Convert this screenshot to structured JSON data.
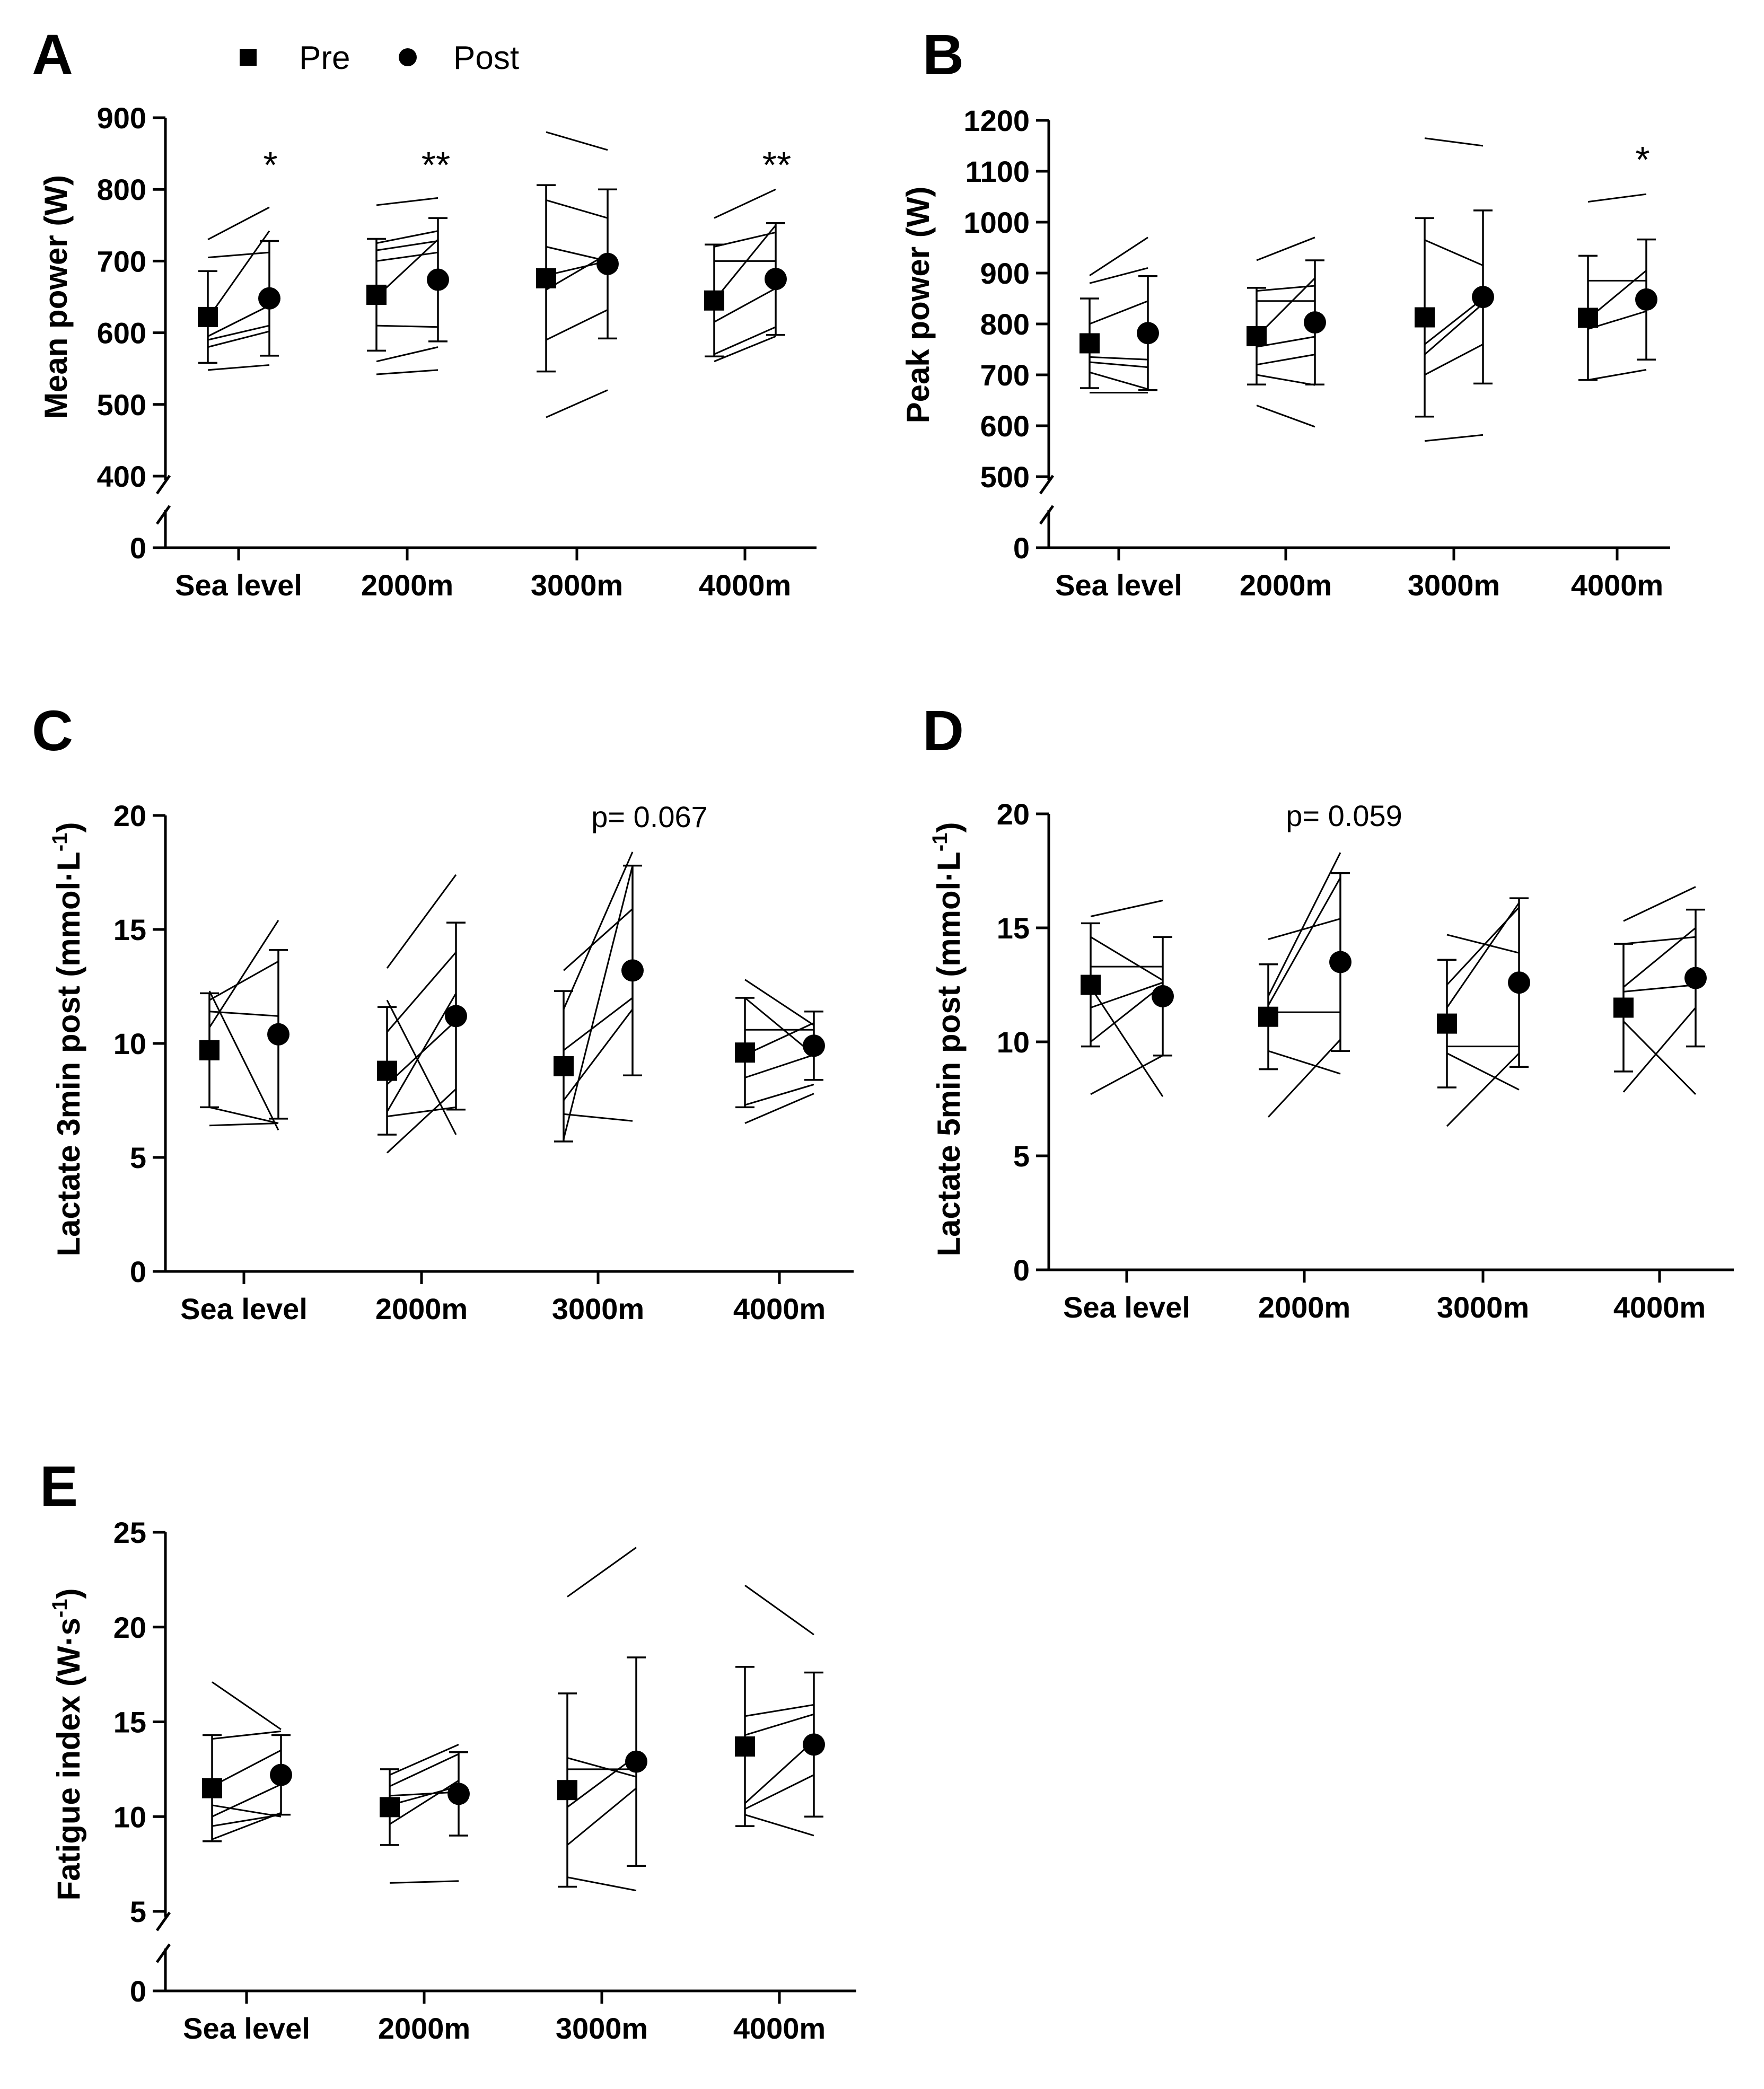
{
  "legend": {
    "pre_label": "Pre",
    "post_label": "Post",
    "pre_marker": "square",
    "post_marker": "circle"
  },
  "colors": {
    "ink": "#000000",
    "background": "#ffffff"
  },
  "chart_data": [
    {
      "id": "A",
      "panel_label": "A",
      "type": "scatter",
      "ylabel": "Mean power (W)",
      "categories": [
        "Sea level",
        "2000m",
        "3000m",
        "4000m"
      ],
      "ylim": [
        400,
        900
      ],
      "ytick_labels": [
        "400",
        "500",
        "600",
        "700",
        "800",
        "900"
      ],
      "axis_break": true,
      "break_zero_label": "0",
      "series": [
        {
          "name": "Pre",
          "values": [
            622,
            653,
            676,
            645
          ],
          "sd": [
            64,
            78,
            130,
            78
          ]
        },
        {
          "name": "Post",
          "values": [
            648,
            674,
            696,
            675
          ],
          "sd": [
            80,
            86,
            104,
            78
          ]
        }
      ],
      "individual_lines": [
        [
          [
            730,
            775
          ],
          [
            705,
            712
          ],
          [
            620,
            742
          ],
          [
            595,
            638
          ],
          [
            590,
            610
          ],
          [
            580,
            602
          ],
          [
            548,
            555
          ]
        ],
        [
          [
            778,
            788
          ],
          [
            725,
            742
          ],
          [
            715,
            728
          ],
          [
            700,
            712
          ],
          [
            650,
            730
          ],
          [
            610,
            608
          ],
          [
            560,
            580
          ],
          [
            542,
            548
          ]
        ],
        [
          [
            880,
            855
          ],
          [
            785,
            760
          ],
          [
            720,
            700
          ],
          [
            680,
            700
          ],
          [
            660,
            710
          ],
          [
            590,
            632
          ],
          [
            482,
            520
          ]
        ],
        [
          [
            760,
            800
          ],
          [
            720,
            740
          ],
          [
            700,
            700
          ],
          [
            645,
            750
          ],
          [
            615,
            662
          ],
          [
            570,
            608
          ],
          [
            560,
            595
          ]
        ]
      ],
      "annotations": [
        "*",
        "**",
        "",
        "**"
      ]
    },
    {
      "id": "B",
      "panel_label": "B",
      "type": "scatter",
      "ylabel": "Peak power (W)",
      "categories": [
        "Sea level",
        "2000m",
        "3000m",
        "4000m"
      ],
      "ylim": [
        500,
        1200
      ],
      "ytick_labels": [
        "500",
        "600",
        "700",
        "800",
        "900",
        "1000",
        "1100",
        "1200"
      ],
      "axis_break": true,
      "break_zero_label": "0",
      "series": [
        {
          "name": "Pre",
          "values": [
            762,
            776,
            813,
            812
          ],
          "sd": [
            88,
            95,
            195,
            122
          ]
        },
        {
          "name": "Post",
          "values": [
            782,
            803,
            853,
            848
          ],
          "sd": [
            112,
            122,
            170,
            118
          ]
        }
      ],
      "individual_lines": [
        [
          [
            895,
            970
          ],
          [
            880,
            910
          ],
          [
            800,
            845
          ],
          [
            735,
            730
          ],
          [
            725,
            715
          ],
          [
            705,
            672
          ],
          [
            665,
            665
          ]
        ],
        [
          [
            925,
            970
          ],
          [
            865,
            875
          ],
          [
            845,
            845
          ],
          [
            775,
            890
          ],
          [
            755,
            775
          ],
          [
            720,
            740
          ],
          [
            700,
            680
          ],
          [
            640,
            598
          ]
        ],
        [
          [
            1165,
            1150
          ],
          [
            965,
            915
          ],
          [
            760,
            850
          ],
          [
            740,
            840
          ],
          [
            700,
            760
          ],
          [
            570,
            582
          ]
        ],
        [
          [
            1040,
            1055
          ],
          [
            885,
            885
          ],
          [
            810,
            905
          ],
          [
            790,
            825
          ],
          [
            690,
            710
          ]
        ]
      ],
      "annotations": [
        "",
        "",
        "",
        "*"
      ]
    },
    {
      "id": "C",
      "panel_label": "C",
      "type": "scatter",
      "ylabel": "Lactate 3min post (mmol·L",
      "ylabel_superscript": "-1",
      "ylabel_suffix": ")",
      "categories": [
        "Sea level",
        "2000m",
        "3000m",
        "4000m"
      ],
      "ylim": [
        0,
        20
      ],
      "ytick_labels": [
        "0",
        "5",
        "10",
        "15",
        "20"
      ],
      "axis_break": false,
      "series": [
        {
          "name": "Pre",
          "values": [
            9.7,
            8.8,
            9.0,
            9.6
          ],
          "sd": [
            2.5,
            2.8,
            3.3,
            2.4
          ]
        },
        {
          "name": "Post",
          "values": [
            10.4,
            11.2,
            13.2,
            9.9
          ],
          "sd": [
            3.7,
            4.1,
            4.6,
            1.5
          ]
        },
        {
          "name": "p-value",
          "values": [
            null,
            null,
            0.067,
            null
          ]
        }
      ],
      "individual_lines": [
        [
          [
            12.3,
            6.2
          ],
          [
            11.9,
            13.6
          ],
          [
            11.4,
            11.2
          ],
          [
            10.7,
            15.4
          ],
          [
            7.2,
            6.5
          ],
          [
            6.4,
            6.5
          ]
        ],
        [
          [
            13.3,
            17.4
          ],
          [
            11.9,
            6.0
          ],
          [
            10.5,
            14.0
          ],
          [
            8.2,
            11.0
          ],
          [
            7.0,
            12.2
          ],
          [
            6.8,
            7.2
          ],
          [
            5.2,
            8.0
          ]
        ],
        [
          [
            13.2,
            15.9
          ],
          [
            11.5,
            18.4
          ],
          [
            9.7,
            12.0
          ],
          [
            7.5,
            11.5
          ],
          [
            6.9,
            6.6
          ],
          [
            5.8,
            17.8
          ]
        ],
        [
          [
            12.8,
            10.8
          ],
          [
            12.0,
            9.5
          ],
          [
            10.6,
            10.6
          ],
          [
            9.5,
            10.9
          ],
          [
            8.5,
            9.5
          ],
          [
            7.3,
            8.2
          ],
          [
            6.5,
            7.8
          ]
        ]
      ],
      "annotations": [
        "",
        "",
        "p= 0.067",
        ""
      ]
    },
    {
      "id": "D",
      "panel_label": "D",
      "type": "scatter",
      "ylabel": "Lactate 5min post (mmol·L",
      "ylabel_superscript": "-1",
      "ylabel_suffix": ")",
      "categories": [
        "Sea level",
        "2000m",
        "3000m",
        "4000m"
      ],
      "ylim": [
        0,
        20
      ],
      "ytick_labels": [
        "0",
        "5",
        "10",
        "15",
        "20"
      ],
      "axis_break": false,
      "series": [
        {
          "name": "Pre",
          "values": [
            12.5,
            11.1,
            10.8,
            11.5
          ],
          "sd": [
            2.7,
            2.3,
            2.8,
            2.8
          ]
        },
        {
          "name": "Post",
          "values": [
            12.0,
            13.5,
            12.6,
            12.8
          ],
          "sd": [
            2.6,
            3.9,
            3.7,
            3.0
          ]
        },
        {
          "name": "p-value",
          "values": [
            null,
            0.059,
            null,
            null
          ]
        }
      ],
      "individual_lines": [
        [
          [
            15.5,
            16.2
          ],
          [
            14.6,
            12.7
          ],
          [
            13.3,
            13.3
          ],
          [
            12.4,
            7.6
          ],
          [
            11.5,
            12.6
          ],
          [
            10.0,
            12.5
          ],
          [
            7.7,
            9.4
          ]
        ],
        [
          [
            14.5,
            15.4
          ],
          [
            12.0,
            18.3
          ],
          [
            11.6,
            17.2
          ],
          [
            11.3,
            11.3
          ],
          [
            9.6,
            8.6
          ],
          [
            6.7,
            10.1
          ]
        ],
        [
          [
            14.7,
            13.9
          ],
          [
            12.5,
            15.9
          ],
          [
            11.5,
            16.1
          ],
          [
            9.8,
            9.8
          ],
          [
            9.5,
            7.9
          ],
          [
            6.3,
            9.5
          ]
        ],
        [
          [
            15.3,
            16.8
          ],
          [
            14.3,
            14.6
          ],
          [
            12.4,
            15.0
          ],
          [
            12.2,
            12.5
          ],
          [
            10.9,
            7.7
          ],
          [
            7.8,
            11.5
          ]
        ]
      ],
      "annotations": [
        "",
        "p= 0.059",
        "",
        ""
      ]
    },
    {
      "id": "E",
      "panel_label": "E",
      "type": "scatter",
      "ylabel": "Fatigue index (W·s",
      "ylabel_superscript": "-1",
      "ylabel_suffix": ")",
      "categories": [
        "Sea level",
        "2000m",
        "3000m",
        "4000m"
      ],
      "ylim": [
        5,
        25
      ],
      "ytick_labels": [
        "5",
        "10",
        "15",
        "20",
        "25"
      ],
      "axis_break": true,
      "break_zero_label": "0",
      "series": [
        {
          "name": "Pre",
          "values": [
            11.5,
            10.5,
            11.4,
            13.7
          ],
          "sd": [
            2.8,
            2.0,
            5.1,
            4.2
          ]
        },
        {
          "name": "Post",
          "values": [
            12.2,
            11.2,
            12.9,
            13.8
          ],
          "sd": [
            2.1,
            2.2,
            5.5,
            3.8
          ]
        }
      ],
      "individual_lines": [
        [
          [
            17.1,
            14.6
          ],
          [
            14.1,
            14.5
          ],
          [
            11.6,
            13.5
          ],
          [
            10.6,
            10.0
          ],
          [
            10.0,
            11.7
          ],
          [
            9.5,
            10.1
          ],
          [
            8.8,
            10.2
          ]
        ],
        [
          [
            12.2,
            13.8
          ],
          [
            11.6,
            13.3
          ],
          [
            11.1,
            11.3
          ],
          [
            10.6,
            11.6
          ],
          [
            9.6,
            11.9
          ],
          [
            6.5,
            6.6
          ]
        ],
        [
          [
            21.6,
            24.2
          ],
          [
            13.1,
            12.1
          ],
          [
            12.5,
            12.5
          ],
          [
            10.5,
            13.2
          ],
          [
            8.5,
            11.5
          ],
          [
            6.8,
            6.1
          ]
        ],
        [
          [
            22.2,
            19.6
          ],
          [
            15.3,
            15.9
          ],
          [
            14.3,
            15.4
          ],
          [
            10.7,
            14.0
          ],
          [
            10.4,
            12.2
          ],
          [
            10.1,
            9.0
          ]
        ]
      ],
      "annotations": [
        "",
        "",
        "",
        ""
      ]
    }
  ]
}
